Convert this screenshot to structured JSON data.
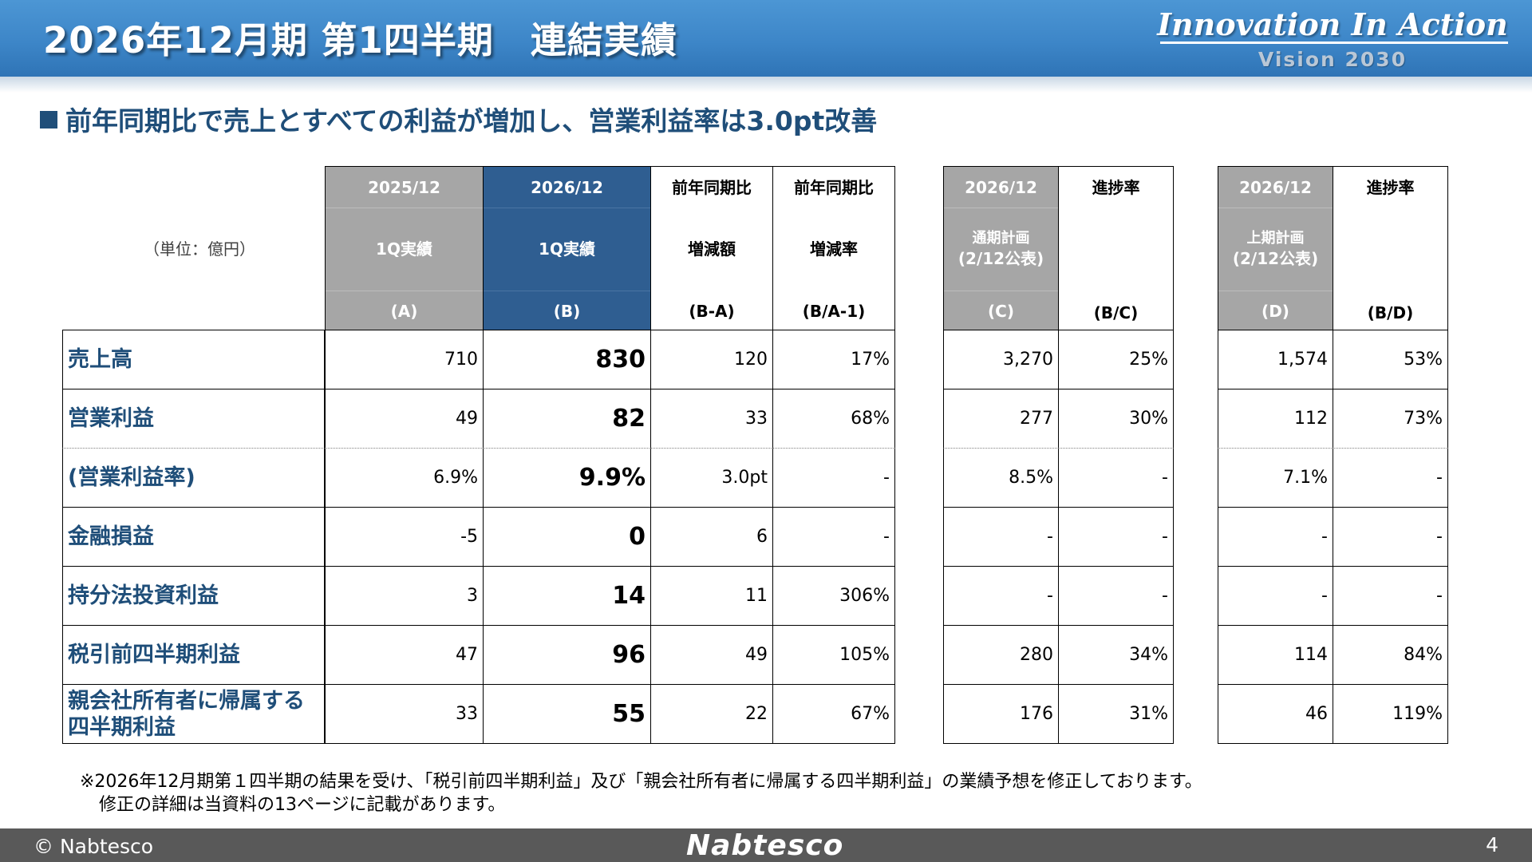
{
  "header": {
    "title": "2026年12月期 第1四半期　連結実績",
    "brand_main": "Innovation In Action",
    "brand_sub": "Vision 2030"
  },
  "subtitle": "前年同期比で売上とすべての利益が増加し、営業利益率は3.0pt改善",
  "table": {
    "unit": "（単位：億円）",
    "columns": [
      {
        "line1": "2025/12",
        "line2": "1Q実績",
        "line3": "(A)"
      },
      {
        "line1": "2026/12",
        "line2": "1Q実績",
        "line3": "(B)"
      },
      {
        "line1": "前年同期比",
        "line2": "増減額",
        "line3": "(B-A)"
      },
      {
        "line1": "前年同期比",
        "line2": "増減率",
        "line3": "(B/A-1)"
      },
      {
        "line1": "2026/12",
        "line2a": "通期計画",
        "line2b": "(2/12公表)",
        "line3": "(C)"
      },
      {
        "line1": "進捗率",
        "line3": "(B/C)"
      },
      {
        "line1": "2026/12",
        "line2a": "上期計画",
        "line2b": "(2/12公表)",
        "line3": "(D)"
      },
      {
        "line1": "進捗率",
        "line3": "(B/D)"
      }
    ],
    "rows": [
      {
        "label": "売上高",
        "values": [
          "710",
          "830",
          "120",
          "17%",
          "3,270",
          "25%",
          "1,574",
          "53%"
        ]
      },
      {
        "label": "営業利益",
        "values": [
          "49",
          "82",
          "33",
          "68%",
          "277",
          "30%",
          "112",
          "73%"
        ]
      },
      {
        "label": "(営業利益率)",
        "values": [
          "6.9%",
          "9.9%",
          "3.0pt",
          "-",
          "8.5%",
          "-",
          "7.1%",
          "-"
        ]
      },
      {
        "label": "金融損益",
        "values": [
          "-5",
          "0",
          "6",
          "-",
          "-",
          "-",
          "-",
          "-"
        ]
      },
      {
        "label": "持分法投資利益",
        "values": [
          "3",
          "14",
          "11",
          "306%",
          "-",
          "-",
          "-",
          "-"
        ]
      },
      {
        "label": "税引前四半期利益",
        "values": [
          "47",
          "96",
          "49",
          "105%",
          "280",
          "34%",
          "114",
          "84%"
        ]
      },
      {
        "label_line1": "親会社所有者に帰属する",
        "label_line2": "四半期利益",
        "values": [
          "33",
          "55",
          "22",
          "67%",
          "176",
          "31%",
          "46",
          "119%"
        ]
      }
    ]
  },
  "note": {
    "line1": "※2026年12月期第１四半期の結果を受け、「税引前四半期利益」及び「親会社所有者に帰属する四半期利益」の業績予想を修正しております。",
    "line2": "修正の詳細は当資料の13ページに記載があります。"
  },
  "footer": {
    "copyright": "© Nabtesco",
    "logo": "Nabtesco",
    "page": "4"
  }
}
